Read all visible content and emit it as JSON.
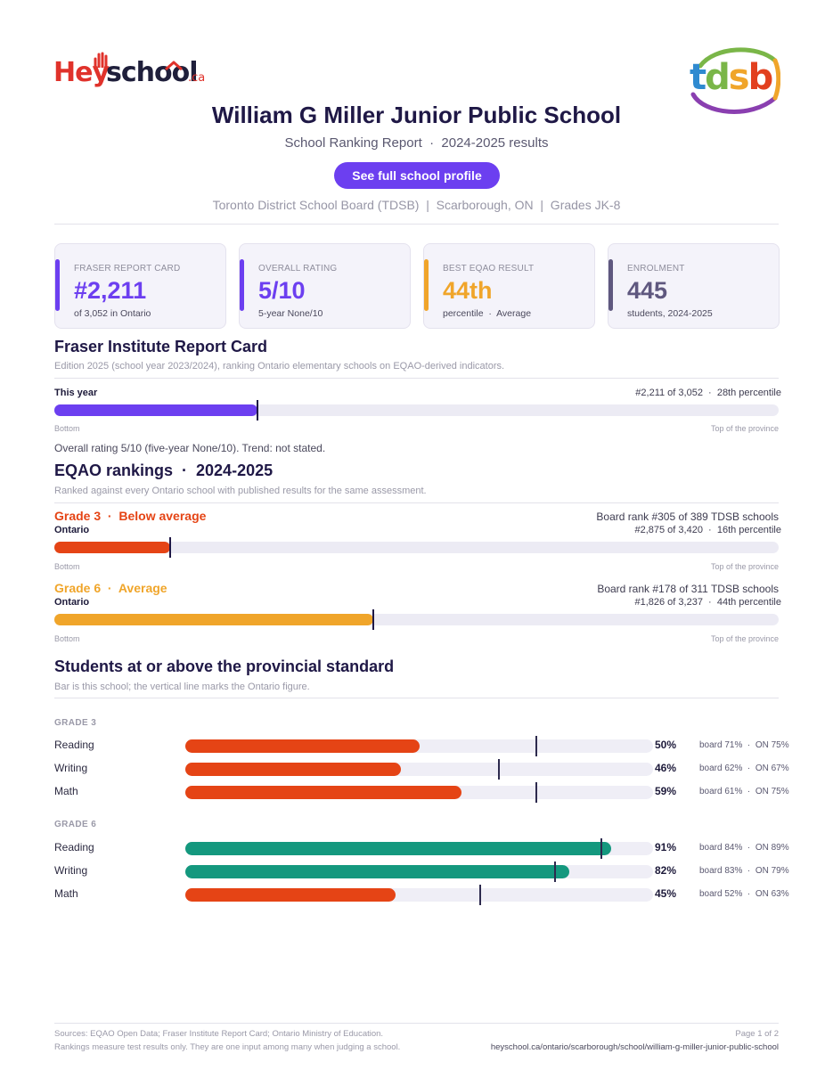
{
  "brand": {
    "hey": "Hey",
    "school": "school",
    "ca": ".ca",
    "partner_logo_text": "tdsb"
  },
  "header": {
    "title": "William G Miller Junior Public School",
    "subtitle": "School Ranking Report  ·  2024-2025 results",
    "cta_label": "See full school profile",
    "meta": "Toronto District School Board (TDSB)  |  Scarborough, ON  |  Grades JK-8"
  },
  "cards": [
    {
      "label": "FRASER REPORT CARD",
      "value": "#2,211",
      "sub": "of 3,052 in Ontario",
      "color": "#6c3ff0"
    },
    {
      "label": "OVERALL RATING",
      "value": "5/10",
      "sub": "5-year None/10",
      "color": "#6c3ff0"
    },
    {
      "label": "BEST EQAO RESULT",
      "value": "44th",
      "sub": "percentile  ·  Average",
      "color": "#f0a52a"
    },
    {
      "label": "ENROLMENT",
      "value": "445",
      "sub": "students, 2024-2025",
      "color": "#5f587f"
    }
  ],
  "fraser": {
    "heading": "Fraser Institute Report Card",
    "note": "Edition 2025 (school year 2023/2024), ranking Ontario elementary schools on EQAO-derived indicators.",
    "row_label": "This year",
    "row_right": "#2,211 of 3,052  ·  28th percentile",
    "fill_fraction": 0.28,
    "axis_left": "Bottom",
    "axis_right": "Top of the province",
    "summary": "Overall rating 5/10 (five-year None/10). Trend: not stated."
  },
  "eqao": {
    "heading": "EQAO rankings  ·  2024-2025",
    "note": "Ranked against every Ontario school with published results for the same assessment.",
    "grades": [
      {
        "title": "Grade 3  ·  Below average",
        "scope": "Ontario",
        "board_rank": "Board rank #305 of 389 TDSB schools",
        "ontario_rank": "#2,875 of 3,420  ·  16th percentile",
        "fill_fraction": 0.16,
        "color": "#e54415",
        "axis_left": "Bottom",
        "axis_right": "Top of the province"
      },
      {
        "title": "Grade 6  ·  Average",
        "scope": "Ontario",
        "board_rank": "Board rank #178 of 311 TDSB schools",
        "ontario_rank": "#1,826 of 3,237  ·  44th percentile",
        "fill_fraction": 0.44,
        "color": "#f0a52a",
        "axis_left": "Bottom",
        "axis_right": "Top of the province"
      }
    ]
  },
  "standards": {
    "heading": "Students at or above the provincial standard",
    "note": "Bar is this school; the vertical line marks the Ontario figure.",
    "groups": [
      {
        "caption": "GRADE 3",
        "rows": [
          {
            "subject": "Reading",
            "school": 50,
            "board": 71,
            "ontario": 75,
            "pct": "50%",
            "compare": "board 71%  ·  ON 75%",
            "color": "#e54415"
          },
          {
            "subject": "Writing",
            "school": 46,
            "board": 62,
            "ontario": 67,
            "pct": "46%",
            "compare": "board 62%  ·  ON 67%",
            "color": "#e54415"
          },
          {
            "subject": "Math",
            "school": 59,
            "board": 61,
            "ontario": 75,
            "pct": "59%",
            "compare": "board 61%  ·  ON 75%",
            "color": "#e54415"
          }
        ]
      },
      {
        "caption": "GRADE 6",
        "rows": [
          {
            "subject": "Reading",
            "school": 91,
            "board": 84,
            "ontario": 89,
            "pct": "91%",
            "compare": "board 84%  ·  ON 89%",
            "color": "#14987e"
          },
          {
            "subject": "Writing",
            "school": 82,
            "board": 83,
            "ontario": 79,
            "pct": "82%",
            "compare": "board 83%  ·  ON 79%",
            "color": "#14987e"
          },
          {
            "subject": "Math",
            "school": 45,
            "board": 52,
            "ontario": 63,
            "pct": "45%",
            "compare": "board 52%  ·  ON 63%",
            "color": "#e54415"
          }
        ]
      }
    ]
  },
  "footer": {
    "sources": "Sources: EQAO Open Data; Fraser Institute Report Card; Ontario Ministry of Education.",
    "disclaimer": "Rankings measure test results only. They are one input among many when judging a school.",
    "page": "Page 1 of 2",
    "url": "heyschool.ca/ontario/scarborough/school/william-g-miller-junior-public-school"
  }
}
